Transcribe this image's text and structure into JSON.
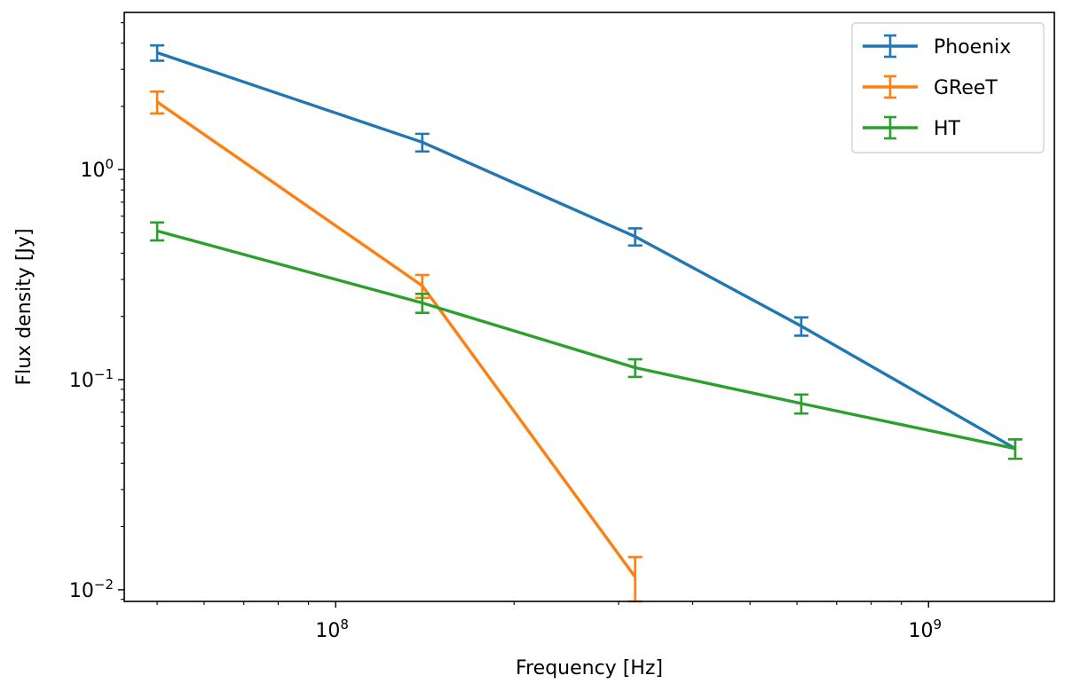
{
  "chart_data": {
    "type": "line",
    "title": "",
    "xlabel": "Frequency [Hz]",
    "ylabel": "Flux density [Jy]",
    "x_scale": "log",
    "y_scale": "log",
    "xlim": [
      44000000,
      1630000000
    ],
    "ylim": [
      0.0088,
      5.6
    ],
    "grid": false,
    "legend_position": "top-right",
    "x_ticks": [
      {
        "value": 100000000,
        "base": "10",
        "exp": "8"
      },
      {
        "value": 1000000000,
        "base": "10",
        "exp": "9"
      }
    ],
    "y_ticks": [
      {
        "value": 0.01,
        "base": "10",
        "exp": "−2"
      },
      {
        "value": 0.1,
        "base": "10",
        "exp": "−1"
      },
      {
        "value": 1,
        "base": "10",
        "exp": "0"
      }
    ],
    "series": [
      {
        "name": "Phoenix",
        "color": "#1f77b4",
        "x": [
          50000000,
          140000000,
          320000000,
          610000000,
          1400000000
        ],
        "y": [
          3.6,
          1.35,
          0.48,
          0.18,
          0.047
        ],
        "yerr": [
          0.3,
          0.13,
          0.045,
          0.018,
          0.005
        ]
      },
      {
        "name": "GReeT",
        "color": "#ff7f0e",
        "x": [
          50000000,
          140000000,
          320000000
        ],
        "y": [
          2.1,
          0.28,
          0.0115
        ],
        "yerr": [
          0.25,
          0.035,
          0.0028
        ]
      },
      {
        "name": "HT",
        "color": "#2ca02c",
        "x": [
          50000000,
          140000000,
          320000000,
          610000000,
          1400000000
        ],
        "y": [
          0.51,
          0.232,
          0.114,
          0.077,
          0.047
        ],
        "yerr": [
          0.05,
          0.024,
          0.011,
          0.008,
          0.005
        ]
      }
    ]
  }
}
